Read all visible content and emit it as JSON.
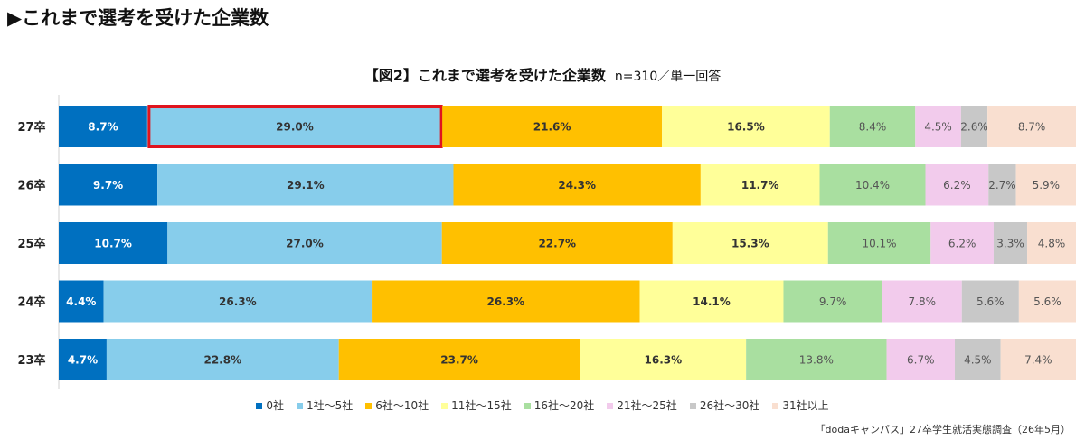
{
  "heading": "▶これまで選考を受けた企業数",
  "chart_title": "【図2】これまで選考を受けた企業数",
  "chart_subtitle": "n=310／単一回答",
  "source": "「dodaキャンパス」27卒学生就活実態調査（26年5月）",
  "chart_data": {
    "type": "bar",
    "stacked": true,
    "orientation": "horizontal",
    "normalized_percent": true,
    "categories": [
      "27卒",
      "26卒",
      "25卒",
      "24卒",
      "23卒"
    ],
    "series": [
      {
        "name": "0社",
        "color": "#0070C0",
        "values": [
          8.7,
          9.7,
          10.7,
          4.4,
          4.7
        ],
        "labels": [
          "8.7%",
          "9.7%",
          "10.7%",
          "4.4%",
          "4.7%"
        ]
      },
      {
        "name": "1社～5社",
        "color": "#87CDEB",
        "values": [
          29.0,
          29.1,
          27.0,
          26.3,
          22.8
        ],
        "labels": [
          "29.0%",
          "29.1%",
          "27.0%",
          "26.3%",
          "22.8%"
        ]
      },
      {
        "name": "6社～10社",
        "color": "#FFC000",
        "values": [
          21.6,
          24.3,
          22.7,
          26.3,
          23.7
        ],
        "labels": [
          "21.6%",
          "24.3%",
          "22.7%",
          "26.3%",
          "23.7%"
        ]
      },
      {
        "name": "11社～15社",
        "color": "#FFFF99",
        "values": [
          16.5,
          11.7,
          15.3,
          14.1,
          16.3
        ],
        "labels": [
          "16.5%",
          "11.7%",
          "15.3%",
          "14.1%",
          "16.3%"
        ]
      },
      {
        "name": "16社～20社",
        "color": "#A9DFA0",
        "values": [
          8.4,
          10.4,
          10.1,
          9.7,
          13.8
        ],
        "labels": [
          "8.4%",
          "10.4%",
          "10.1%",
          "9.7%",
          "13.8%"
        ]
      },
      {
        "name": "21社～25社",
        "color": "#F2CBEC",
        "values": [
          4.5,
          6.2,
          6.2,
          7.8,
          6.7
        ],
        "labels": [
          "4.5%",
          "6.2%",
          "6.2%",
          "7.8%",
          "6.7%"
        ]
      },
      {
        "name": "26社～30社",
        "color": "#C8C8C8",
        "values": [
          2.6,
          2.7,
          3.3,
          5.6,
          4.5
        ],
        "labels": [
          "2.6%",
          "2.7%",
          "3.3%",
          "5.6%",
          "4.5%"
        ]
      },
      {
        "name": "31社以上",
        "color": "#F9DFD0",
        "values": [
          8.7,
          5.9,
          4.8,
          5.6,
          7.4
        ],
        "labels": [
          "8.7%",
          "5.9%",
          "4.8%",
          "5.6%",
          "7.4%"
        ]
      }
    ],
    "highlight": {
      "category": "27卒",
      "series": "1社～5社",
      "color": "#E0141E"
    },
    "grid": false,
    "legend_position": "bottom"
  }
}
